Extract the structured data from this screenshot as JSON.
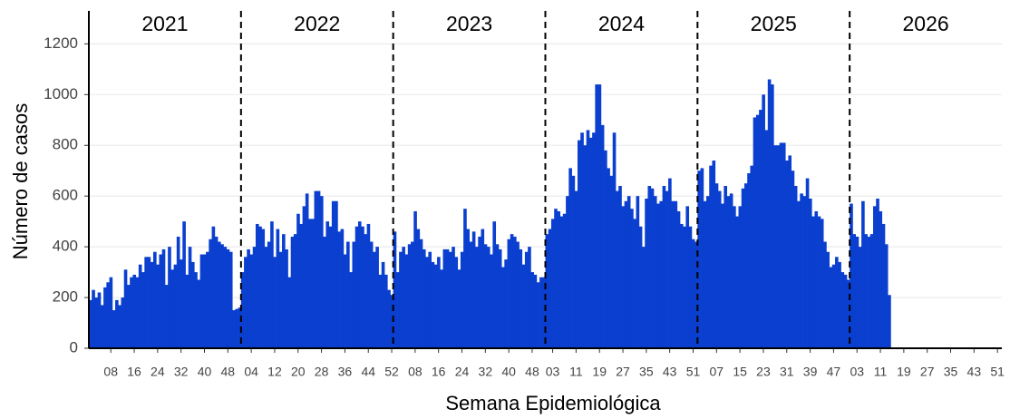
{
  "chart_data": {
    "type": "bar",
    "x_label": "Semana Epidemiológica",
    "y_label": "Número de casos",
    "year_labels": [
      "2021",
      "2022",
      "2023",
      "2024",
      "2025",
      "2026"
    ],
    "categories": [
      null,
      null,
      null,
      null,
      null,
      null,
      null,
      "08",
      null,
      null,
      null,
      null,
      null,
      null,
      null,
      "16",
      null,
      null,
      null,
      null,
      null,
      null,
      null,
      "24",
      null,
      null,
      null,
      null,
      null,
      null,
      null,
      "32",
      null,
      null,
      null,
      null,
      null,
      null,
      null,
      "40",
      null,
      null,
      null,
      null,
      null,
      null,
      null,
      "48",
      null,
      null,
      null,
      null,
      null,
      null,
      null,
      "04",
      null,
      null,
      null,
      null,
      null,
      null,
      null,
      "12",
      null,
      null,
      null,
      null,
      null,
      null,
      null,
      "20",
      null,
      null,
      null,
      null,
      null,
      null,
      null,
      "28",
      null,
      null,
      null,
      null,
      null,
      null,
      null,
      "36",
      null,
      null,
      null,
      null,
      null,
      null,
      null,
      "44",
      null,
      null,
      null,
      null,
      null,
      null,
      null,
      "52",
      null,
      null,
      null,
      null,
      null,
      null,
      null,
      "08",
      null,
      null,
      null,
      null,
      null,
      null,
      null,
      "16",
      null,
      null,
      null,
      null,
      null,
      null,
      null,
      "24",
      null,
      null,
      null,
      null,
      null,
      null,
      null,
      "32",
      null,
      null,
      null,
      null,
      null,
      null,
      null,
      "40",
      null,
      null,
      null,
      null,
      null,
      null,
      null,
      "48",
      null,
      null,
      null,
      null,
      null,
      null,
      "03",
      null,
      null,
      null,
      null,
      null,
      null,
      null,
      "11",
      null,
      null,
      null,
      null,
      null,
      null,
      null,
      "19",
      null,
      null,
      null,
      null,
      null,
      null,
      null,
      "27",
      null,
      null,
      null,
      null,
      null,
      null,
      null,
      "35",
      null,
      null,
      null,
      null,
      null,
      null,
      null,
      "43",
      null,
      null,
      null,
      null,
      null,
      null,
      null,
      "51",
      null,
      null,
      null,
      null,
      null,
      null,
      null,
      "07",
      null,
      null,
      null,
      null,
      null,
      null,
      null,
      "15",
      null,
      null,
      null,
      null,
      null,
      null,
      null,
      "23",
      null,
      null,
      null,
      null,
      null,
      null,
      null,
      "31",
      null,
      null,
      null,
      null,
      null,
      null,
      null,
      "39",
      null,
      null,
      null,
      null,
      null,
      null,
      null,
      "47",
      null,
      null,
      null,
      null,
      null,
      null,
      null,
      "03",
      null,
      null,
      null,
      null,
      null,
      null,
      null,
      "11",
      null,
      null,
      null,
      null,
      null,
      null,
      null,
      "19",
      null,
      null,
      null,
      null,
      null,
      null,
      null,
      "27",
      null,
      null,
      null,
      null,
      null,
      null,
      null,
      "35",
      null,
      null,
      null,
      null,
      null,
      null,
      null,
      "43",
      null,
      null,
      null,
      null,
      null,
      null,
      null,
      "51",
      null
    ],
    "values": [
      190,
      230,
      200,
      220,
      170,
      240,
      260,
      280,
      150,
      190,
      170,
      200,
      310,
      250,
      280,
      290,
      280,
      330,
      300,
      360,
      360,
      340,
      380,
      330,
      370,
      390,
      250,
      400,
      310,
      330,
      440,
      350,
      500,
      290,
      400,
      340,
      300,
      270,
      370,
      370,
      380,
      430,
      480,
      440,
      420,
      410,
      400,
      390,
      380,
      150,
      155,
      160,
      300,
      360,
      390,
      370,
      400,
      490,
      480,
      470,
      400,
      420,
      500,
      360,
      470,
      380,
      450,
      390,
      280,
      440,
      450,
      530,
      490,
      560,
      610,
      510,
      510,
      620,
      620,
      600,
      440,
      500,
      480,
      580,
      580,
      460,
      470,
      370,
      420,
      300,
      420,
      480,
      500,
      480,
      450,
      490,
      420,
      380,
      400,
      290,
      340,
      290,
      230,
      210,
      460,
      300,
      380,
      400,
      370,
      410,
      420,
      540,
      470,
      430,
      390,
      360,
      380,
      340,
      330,
      360,
      310,
      390,
      390,
      380,
      400,
      360,
      310,
      380,
      550,
      470,
      420,
      460,
      400,
      440,
      470,
      410,
      400,
      370,
      500,
      410,
      390,
      320,
      350,
      430,
      450,
      440,
      420,
      390,
      330,
      380,
      400,
      300,
      290,
      260,
      280,
      280,
      450,
      470,
      510,
      550,
      540,
      520,
      530,
      600,
      710,
      680,
      620,
      820,
      850,
      800,
      860,
      830,
      850,
      1040,
      1040,
      880,
      780,
      710,
      680,
      850,
      620,
      640,
      560,
      580,
      600,
      550,
      510,
      600,
      480,
      400,
      590,
      640,
      630,
      600,
      570,
      580,
      640,
      620,
      670,
      580,
      580,
      540,
      490,
      480,
      560,
      480,
      430,
      420,
      700,
      710,
      580,
      600,
      720,
      740,
      650,
      620,
      570,
      640,
      600,
      610,
      560,
      520,
      560,
      630,
      650,
      690,
      720,
      910,
      920,
      940,
      1000,
      860,
      1060,
      1040,
      800,
      800,
      810,
      810,
      740,
      760,
      700,
      640,
      580,
      610,
      600,
      670,
      590,
      520,
      540,
      520,
      510,
      420,
      380,
      320,
      330,
      360,
      340,
      300,
      290,
      270,
      570,
      450,
      440,
      400,
      580,
      450,
      440,
      450,
      560,
      590,
      540,
      490,
      410,
      210,
      null,
      null,
      null,
      null,
      null,
      null,
      null,
      null,
      null,
      null,
      null,
      null,
      null,
      null,
      null,
      null,
      null,
      null,
      null,
      null,
      null,
      null,
      null,
      null,
      null,
      null,
      null,
      null,
      null,
      null,
      null,
      null,
      null,
      null,
      null,
      null,
      null,
      null
    ],
    "color": "#0b3fcf",
    "ylim": [
      0,
      1330
    ],
    "yticks": [
      0,
      200,
      400,
      600,
      800,
      1000,
      1200
    ],
    "grid": true
  }
}
